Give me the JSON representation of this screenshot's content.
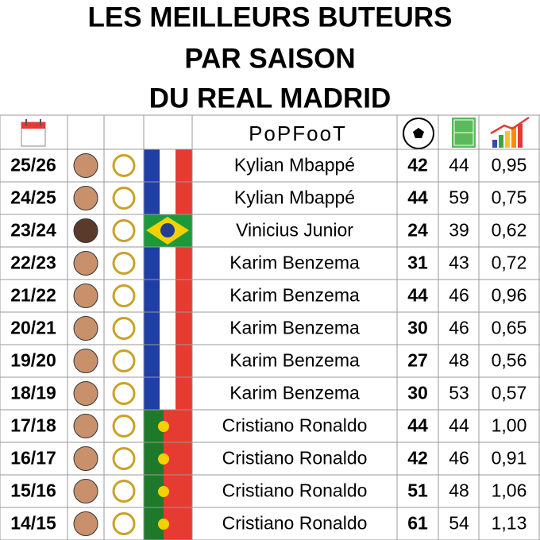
{
  "header": {
    "title_lines": [
      "LES MEILLEURS BUTEURS",
      "PAR SAISON",
      "DU REAL MADRID"
    ],
    "logo": "PoPFooT"
  },
  "table": {
    "rows": [
      [
        "25/26",
        "Kylian Mbappé",
        42,
        44,
        "0,95"
      ],
      [
        "24/25",
        "Kylian Mbappé",
        44,
        59,
        "0,75"
      ],
      [
        "23/24",
        "Vinicius Junior",
        24,
        39,
        "0,62"
      ],
      [
        "22/23",
        "Karim Benzema",
        31,
        43,
        "0,72"
      ],
      [
        "21/22",
        "Karim Benzema",
        44,
        46,
        "0,96"
      ],
      [
        "20/21",
        "Karim Benzema",
        30,
        46,
        "0,65"
      ],
      [
        "19/20",
        "Karim Benzema",
        27,
        48,
        "0,56"
      ],
      [
        "18/19",
        "Karim Benzema",
        30,
        53,
        "0,57"
      ],
      [
        "17/18",
        "Cristiano Ronaldo",
        44,
        44,
        "1,00"
      ],
      [
        "16/17",
        "Cristiano Ronaldo",
        42,
        46,
        "0,91"
      ],
      [
        "15/16",
        "Cristiano Ronaldo",
        51,
        48,
        "1,06"
      ],
      [
        "14/15",
        "Cristiano Ronaldo",
        61,
        54,
        "1,13"
      ]
    ]
  }
}
